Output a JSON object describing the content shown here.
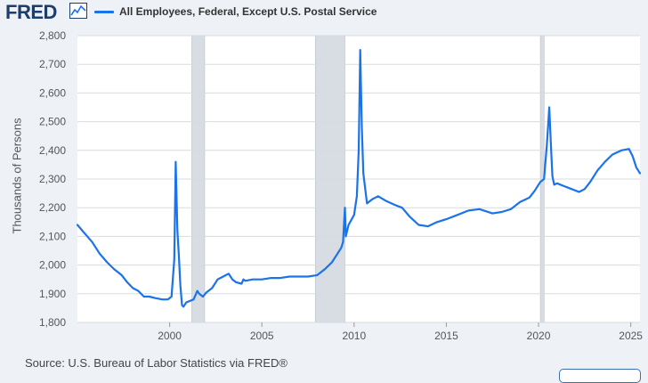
{
  "header": {
    "logo_text": "FRED",
    "logo_icon": "line-chart-icon"
  },
  "source_text": "Source: U.S. Bureau of Labor Statistics via FRED®",
  "colors": {
    "series": "#1a73e8",
    "recession": "#d8dde3",
    "grid": "#d7dbe0",
    "background": "#eef2f7",
    "plot_background": "#ffffff"
  },
  "chart_data": {
    "type": "line",
    "title": "",
    "xlabel": "",
    "ylabel": "Thousands of Persons",
    "xlim": [
      1995,
      2025.5
    ],
    "ylim": [
      1800,
      2800
    ],
    "yticks": [
      "1,800",
      "1,900",
      "2,000",
      "2,100",
      "2,200",
      "2,300",
      "2,400",
      "2,500",
      "2,600",
      "2,700",
      "2,800"
    ],
    "xticks": [
      "2000",
      "2005",
      "2010",
      "2015",
      "2020",
      "2025"
    ],
    "grid": "horizontal",
    "legend_position": "top",
    "recessions": [
      [
        2001.2,
        2001.9
      ],
      [
        2007.9,
        2009.5
      ],
      [
        2020.1,
        2020.3
      ]
    ],
    "series": [
      {
        "name": "All Employees, Federal, Except U.S. Postal Service",
        "x": [
          1995.0,
          1995.4,
          1995.8,
          1996.2,
          1996.6,
          1997.0,
          1997.4,
          1997.7,
          1998.0,
          1998.3,
          1998.6,
          1998.9,
          1999.2,
          1999.6,
          1999.9,
          2000.1,
          2000.25,
          2000.33,
          2000.42,
          2000.5,
          2000.58,
          2000.67,
          2000.75,
          2000.9,
          2001.3,
          2001.5,
          2001.6,
          2001.8,
          2002.0,
          2002.3,
          2002.6,
          2002.9,
          2003.2,
          2003.4,
          2003.6,
          2003.9,
          2004.0,
          2004.1,
          2004.5,
          2005.0,
          2005.5,
          2006.0,
          2006.5,
          2007.0,
          2007.5,
          2008.0,
          2008.4,
          2008.8,
          2009.1,
          2009.3,
          2009.4,
          2009.5,
          2009.55,
          2009.7,
          2010.0,
          2010.15,
          2010.25,
          2010.33,
          2010.42,
          2010.5,
          2010.7,
          2011.0,
          2011.3,
          2011.7,
          2012.2,
          2012.6,
          2013.0,
          2013.5,
          2014.0,
          2014.5,
          2015.0,
          2015.6,
          2016.2,
          2016.8,
          2017.5,
          2018.0,
          2018.5,
          2019.0,
          2019.5,
          2019.8,
          2020.0,
          2020.1,
          2020.3,
          2020.45,
          2020.58,
          2020.67,
          2020.75,
          2020.85,
          2021.0,
          2021.4,
          2021.8,
          2022.2,
          2022.5,
          2022.8,
          2023.2,
          2023.6,
          2024.0,
          2024.5,
          2024.9,
          2025.1,
          2025.3,
          2025.5
        ],
        "y": [
          2140,
          2110,
          2080,
          2040,
          2010,
          1985,
          1965,
          1940,
          1920,
          1910,
          1890,
          1890,
          1885,
          1880,
          1880,
          1890,
          2020,
          2360,
          2120,
          2030,
          1930,
          1860,
          1855,
          1870,
          1880,
          1910,
          1900,
          1890,
          1905,
          1920,
          1950,
          1960,
          1970,
          1950,
          1940,
          1935,
          1950,
          1945,
          1950,
          1950,
          1955,
          1955,
          1960,
          1960,
          1960,
          1965,
          1985,
          2010,
          2040,
          2060,
          2080,
          2200,
          2100,
          2140,
          2175,
          2240,
          2400,
          2750,
          2480,
          2320,
          2215,
          2230,
          2240,
          2225,
          2210,
          2200,
          2170,
          2140,
          2135,
          2150,
          2160,
          2175,
          2190,
          2195,
          2180,
          2185,
          2195,
          2220,
          2235,
          2260,
          2280,
          2290,
          2300,
          2420,
          2550,
          2420,
          2310,
          2280,
          2285,
          2275,
          2265,
          2255,
          2265,
          2290,
          2330,
          2360,
          2385,
          2400,
          2405,
          2380,
          2340,
          2320
        ]
      }
    ]
  }
}
